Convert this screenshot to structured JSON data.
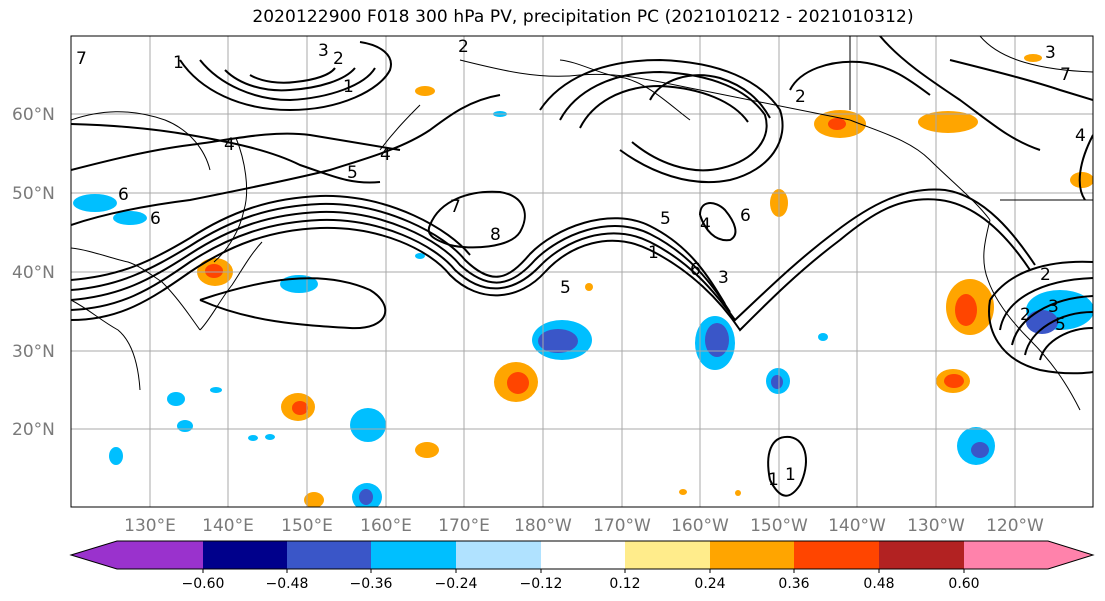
{
  "title": "2020122900 F018 300 hPa PV, precipitation PC (2021010212 - 2021010312)",
  "map": {
    "lat_labels": [
      "60°N",
      "50°N",
      "40°N",
      "30°N",
      "20°N"
    ],
    "lon_labels": [
      "130°E",
      "140°E",
      "150°E",
      "160°E",
      "170°E",
      "180°W",
      "170°W",
      "160°W",
      "150°W",
      "140°W",
      "130°W",
      "120°W"
    ],
    "contour_labels": [
      "1",
      "2",
      "3",
      "4",
      "5",
      "6",
      "7",
      "8",
      "1",
      "2",
      "3",
      "4",
      "5",
      "6",
      "7",
      "1",
      "2",
      "3",
      "4",
      "5",
      "6",
      "1",
      "2",
      "3",
      "4",
      "5",
      "6",
      "7",
      "2",
      "1"
    ]
  },
  "colorbar": {
    "ticks": [
      "−0.60",
      "−0.48",
      "−0.36",
      "−0.24",
      "−0.12",
      "0.12",
      "0.24",
      "0.36",
      "0.48",
      "0.60"
    ],
    "colors": [
      "#9a32cd",
      "#00008b",
      "#3a56c8",
      "#00bfff",
      "#b0e2ff",
      "#ffffff",
      "#ffec8b",
      "#ffa500",
      "#ff4500",
      "#b22222",
      "#ff82ab"
    ]
  }
}
